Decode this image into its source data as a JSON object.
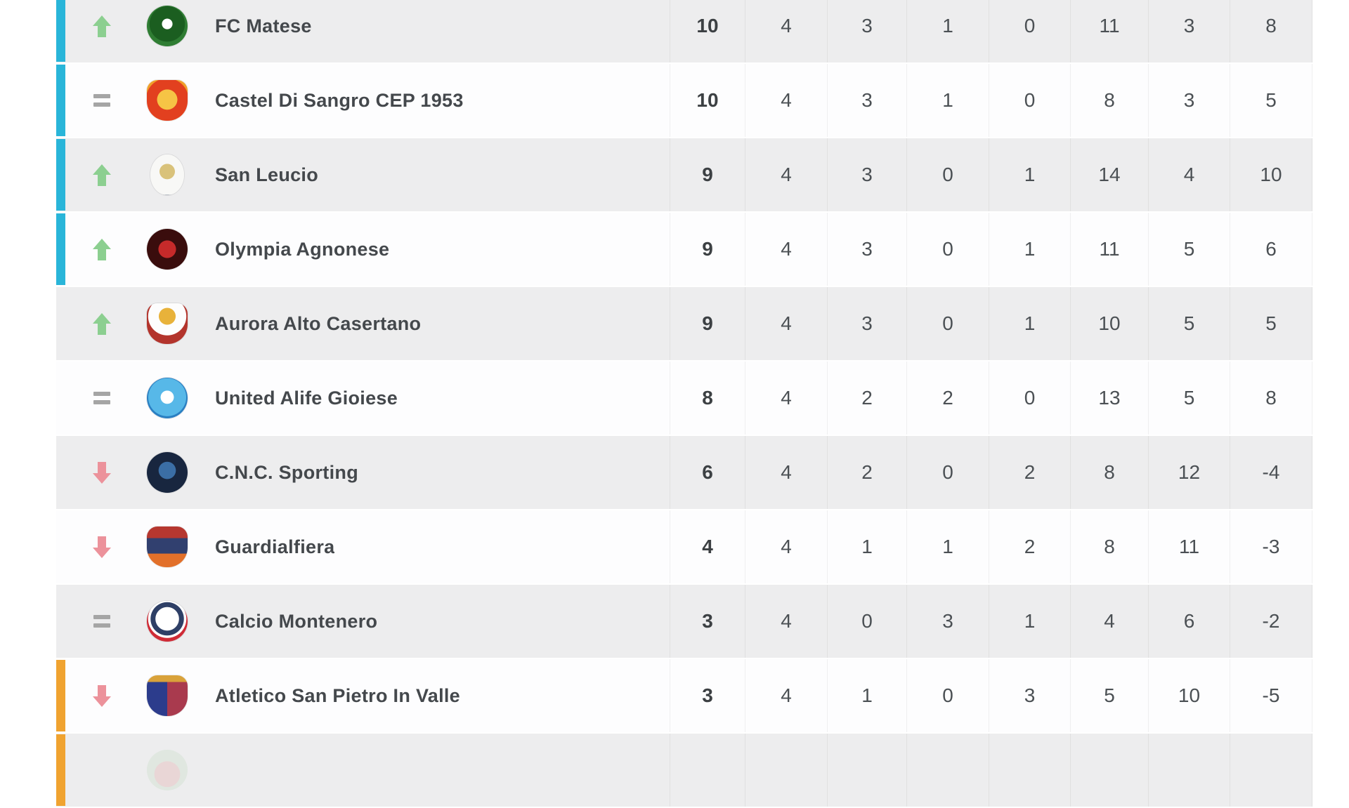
{
  "colors": {
    "page_background": "#ffffff",
    "row_alt_background": "#ededee",
    "row_base_background": "#fdfdfe",
    "promotion_bar": "#29b5d9",
    "relegation_bar": "#f0a330",
    "movement_up": "#8ccf90",
    "movement_down": "#ec929b",
    "movement_same": "#a5a5a5",
    "team_name_text": "#44484c",
    "stat_text": "#4b5054",
    "points_text": "#3c4043"
  },
  "standings": {
    "rows": [
      {
        "movement": "up",
        "zone": "promotion",
        "team": "FC Matese",
        "points": "10",
        "played": "4",
        "wins": "3",
        "draws": "1",
        "losses": "0",
        "goals_for": "11",
        "goals_against": "3",
        "goal_diff": "8",
        "crest": {
          "shape": "circle",
          "style": "radial-gradient(circle at 50% 45%, #ffffff 0 17%, #1b5e20 18% 58%, #2f7d33 59% 78%, #ece5c4 79% 100%)"
        }
      },
      {
        "movement": "same",
        "zone": "promotion",
        "team": "Castel Di Sangro CEP 1953",
        "points": "10",
        "played": "4",
        "wins": "3",
        "draws": "1",
        "losses": "0",
        "goals_for": "8",
        "goals_against": "3",
        "goal_diff": "5",
        "crest": {
          "shape": "shield",
          "style": "radial-gradient(circle at 50% 48%, #f6c445 0 34%, #e2401f 35% 72%, #f0a02a 73% 100%)"
        }
      },
      {
        "movement": "up",
        "zone": "promotion",
        "team": "San Leucio",
        "points": "9",
        "played": "4",
        "wins": "3",
        "draws": "0",
        "losses": "1",
        "goals_for": "14",
        "goals_against": "4",
        "goal_diff": "10",
        "crest": {
          "shape": "oval",
          "style": "radial-gradient(circle at 50% 42%, #d9c27a 0 26%, #f8f8f6 27% 80%, #54657a 81% 100%)"
        }
      },
      {
        "movement": "up",
        "zone": "promotion",
        "team": "Olympia Agnonese",
        "points": "9",
        "played": "4",
        "wins": "3",
        "draws": "0",
        "losses": "1",
        "goals_for": "11",
        "goals_against": "5",
        "goal_diff": "6",
        "crest": {
          "shape": "circle",
          "style": "radial-gradient(circle at 50% 50%, #c62a2a 0 30%, #3a0d0d 31% 76%, #7a1f1f 77% 100%)"
        }
      },
      {
        "movement": "up",
        "zone": "none",
        "team": "Aurora Alto Casertano",
        "points": "9",
        "played": "4",
        "wins": "3",
        "draws": "0",
        "losses": "1",
        "goals_for": "10",
        "goals_against": "5",
        "goal_diff": "5",
        "crest": {
          "shape": "shield",
          "style": "radial-gradient(circle at 50% 32%, #e8b23a 0 24%, #fdfdfd 25% 55%, #b3342c 56% 100%)"
        }
      },
      {
        "movement": "same",
        "zone": "none",
        "team": "United Alife Gioiese",
        "points": "8",
        "played": "4",
        "wins": "2",
        "draws": "2",
        "losses": "0",
        "goals_for": "13",
        "goals_against": "5",
        "goal_diff": "8",
        "crest": {
          "shape": "circle",
          "style": "radial-gradient(circle at 50% 48%, #ffffff 0 22%, #57b8e8 23% 64%, #2a7fc2 65% 86%, #1b4a7a 87% 100%)"
        }
      },
      {
        "movement": "down",
        "zone": "none",
        "team": "C.N.C. Sporting",
        "points": "6",
        "played": "4",
        "wins": "2",
        "draws": "0",
        "losses": "2",
        "goals_for": "8",
        "goals_against": "12",
        "goal_diff": "-4",
        "crest": {
          "shape": "circle",
          "style": "radial-gradient(circle at 50% 45%, #3b6ea5 0 28%, #18263f 29% 84%, #2c3f63 85% 100%)"
        }
      },
      {
        "movement": "down",
        "zone": "none",
        "team": "Guardialfiera",
        "points": "4",
        "played": "4",
        "wins": "1",
        "draws": "1",
        "losses": "2",
        "goals_for": "8",
        "goals_against": "11",
        "goal_diff": "-3",
        "crest": {
          "shape": "shield",
          "style": "linear-gradient(180deg, #b6372f 0 28%, #31406f 29% 66%, #e2702a 67% 100%)"
        }
      },
      {
        "movement": "same",
        "zone": "none",
        "team": "Calcio Montenero",
        "points": "3",
        "played": "4",
        "wins": "0",
        "draws": "3",
        "losses": "1",
        "goals_for": "4",
        "goals_against": "6",
        "goal_diff": "-2",
        "crest": {
          "shape": "circle",
          "style": "radial-gradient(circle at 50% 44%, #ffffff 0 38%, #2e3f66 39% 54%, #ffffff 55% 62%, #cf2b36 63% 100%)"
        }
      },
      {
        "movement": "down",
        "zone": "relegation",
        "team": "Atletico San Pietro In Valle",
        "points": "3",
        "played": "4",
        "wins": "1",
        "draws": "0",
        "losses": "3",
        "goals_for": "5",
        "goals_against": "10",
        "goal_diff": "-5",
        "crest": {
          "shape": "shield",
          "style": "linear-gradient(180deg, #d9a23a 0 16%, rgba(0,0,0,0) 16%), linear-gradient(90deg, #2c3c8c 0 50%, #a93a4e 50% 100%)"
        }
      },
      {
        "movement": "",
        "zone": "relegation",
        "team": "",
        "points": "",
        "played": "",
        "wins": "",
        "draws": "",
        "losses": "",
        "goals_for": "",
        "goals_against": "",
        "goal_diff": "",
        "crest": {
          "shape": "circle",
          "style": "radial-gradient(circle at 50% 60%, #e4b9b9 0 40%, #cfe0cf 41% 100%)",
          "faint": true
        },
        "partial": true
      }
    ]
  }
}
